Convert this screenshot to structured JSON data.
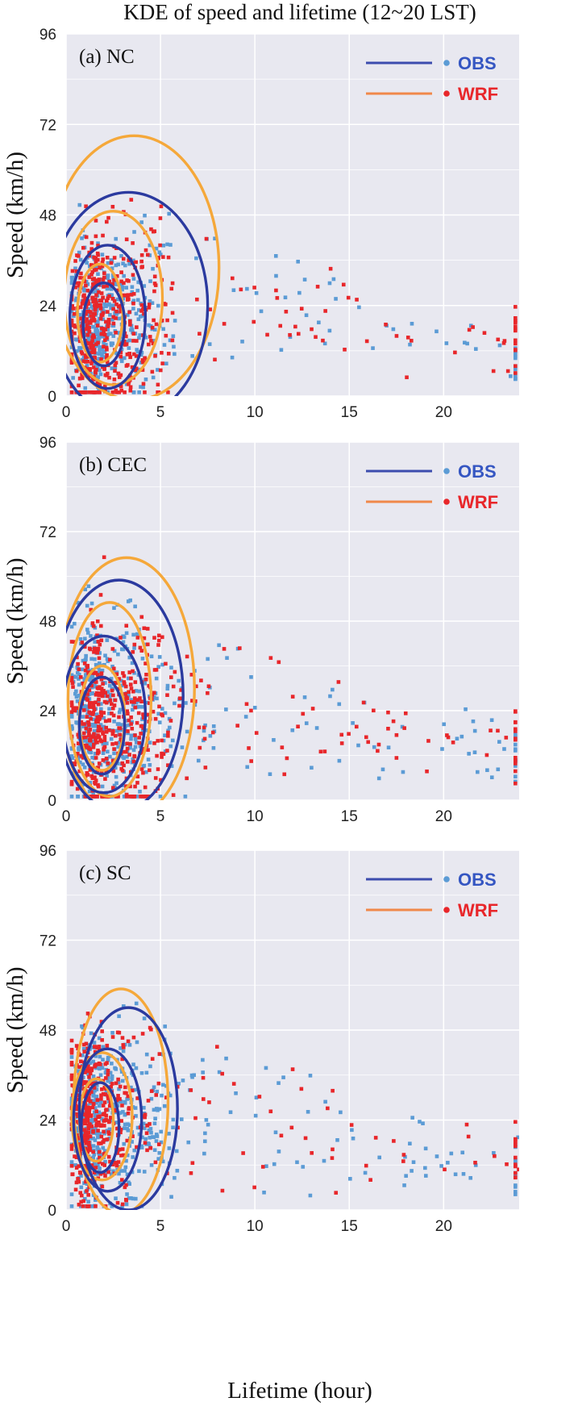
{
  "figure": {
    "title": "KDE of speed and lifetime (12~20 LST)",
    "xlabel": "Lifetime (hour)",
    "ylabel": "Speed (km/h)"
  },
  "colors": {
    "obs_points": "#5b9bd5",
    "wrf_points": "#e8262a",
    "obs_contour": "#2b3a9f",
    "wrf_contour": "#f5a83a",
    "obs_legend_line": "#3c4cae",
    "wrf_legend_line": "#f0884a",
    "obs_legend_text": "#3556c2",
    "wrf_legend_text": "#e8262a",
    "panel_bg": "#e8e8f0",
    "grid": "#ffffff"
  },
  "chart_data": [
    {
      "type": "scatter",
      "panel": "(a) NC",
      "xlim": [
        0,
        24
      ],
      "ylim": [
        0,
        96
      ],
      "xticks": [
        0,
        5,
        10,
        15,
        20
      ],
      "yticks": [
        0,
        24,
        48,
        72,
        96
      ],
      "grid": true,
      "legend_position": "top-right",
      "series": [
        {
          "name": "OBS",
          "color": "#5b9bd5",
          "contour_color": "#2b3a9f",
          "center": [
            1.7,
            20
          ],
          "spread": [
            1.3,
            10
          ],
          "tail_count": 60
        },
        {
          "name": "WRF",
          "color": "#e8262a",
          "contour_color": "#f5a83a",
          "center": [
            1.6,
            20
          ],
          "spread": [
            1.4,
            12
          ],
          "tail_count": 75
        }
      ],
      "contours": {
        "OBS": [
          {
            "cx": 2.0,
            "cy": 19,
            "rx": 1.1,
            "ry": 11
          },
          {
            "cx": 2.2,
            "cy": 21,
            "rx": 2.0,
            "ry": 19
          },
          {
            "cx": 3.3,
            "cy": 24,
            "rx": 4.2,
            "ry": 30
          }
        ],
        "WRF": [
          {
            "cx": 1.8,
            "cy": 22,
            "rx": 1.2,
            "ry": 13
          },
          {
            "cx": 2.5,
            "cy": 26,
            "rx": 2.6,
            "ry": 23
          },
          {
            "cx": 3.6,
            "cy": 34,
            "rx": 4.5,
            "ry": 35
          }
        ]
      }
    },
    {
      "type": "scatter",
      "panel": "(b) CEC",
      "xlim": [
        0,
        24
      ],
      "ylim": [
        0,
        96
      ],
      "xticks": [
        0,
        5,
        10,
        15,
        20
      ],
      "yticks": [
        0,
        24,
        48,
        72,
        96
      ],
      "grid": true,
      "legend_position": "top-right",
      "series": [
        {
          "name": "OBS",
          "color": "#5b9bd5",
          "contour_color": "#2b3a9f",
          "center": [
            1.6,
            22
          ],
          "spread": [
            1.4,
            13
          ],
          "tail_count": 75
        },
        {
          "name": "WRF",
          "color": "#e8262a",
          "contour_color": "#f5a83a",
          "center": [
            1.8,
            20
          ],
          "spread": [
            1.5,
            13
          ],
          "tail_count": 80
        }
      ],
      "contours": {
        "OBS": [
          {
            "cx": 1.9,
            "cy": 20,
            "rx": 1.2,
            "ry": 13
          },
          {
            "cx": 2.0,
            "cy": 23,
            "rx": 2.2,
            "ry": 21
          },
          {
            "cx": 2.8,
            "cy": 28,
            "rx": 3.4,
            "ry": 31
          }
        ],
        "WRF": [
          {
            "cx": 1.9,
            "cy": 22,
            "rx": 1.2,
            "ry": 14
          },
          {
            "cx": 2.3,
            "cy": 27,
            "rx": 2.2,
            "ry": 26
          },
          {
            "cx": 3.2,
            "cy": 30,
            "rx": 3.6,
            "ry": 35
          }
        ]
      }
    },
    {
      "type": "scatter",
      "panel": "(c) SC",
      "xlim": [
        0,
        24
      ],
      "ylim": [
        0,
        96
      ],
      "xticks": [
        0,
        5,
        10,
        15,
        20
      ],
      "yticks": [
        0,
        24,
        48,
        72,
        96
      ],
      "grid": true,
      "legend_position": "top-right",
      "series": [
        {
          "name": "OBS",
          "color": "#5b9bd5",
          "contour_color": "#2b3a9f",
          "center": [
            1.7,
            24
          ],
          "spread": [
            1.4,
            12
          ],
          "tail_count": 90
        },
        {
          "name": "WRF",
          "color": "#e8262a",
          "contour_color": "#f5a83a",
          "center": [
            1.3,
            24
          ],
          "spread": [
            1.0,
            11
          ],
          "tail_count": 55
        }
      ],
      "contours": {
        "OBS": [
          {
            "cx": 1.8,
            "cy": 22,
            "rx": 1.0,
            "ry": 12
          },
          {
            "cx": 2.2,
            "cy": 24,
            "rx": 1.8,
            "ry": 19
          },
          {
            "cx": 3.3,
            "cy": 27,
            "rx": 2.6,
            "ry": 27
          }
        ],
        "WRF": [
          {
            "cx": 1.6,
            "cy": 24,
            "rx": 0.9,
            "ry": 11
          },
          {
            "cx": 1.9,
            "cy": 25,
            "rx": 1.6,
            "ry": 17
          },
          {
            "cx": 2.9,
            "cy": 29,
            "rx": 2.5,
            "ry": 30
          }
        ]
      }
    }
  ]
}
